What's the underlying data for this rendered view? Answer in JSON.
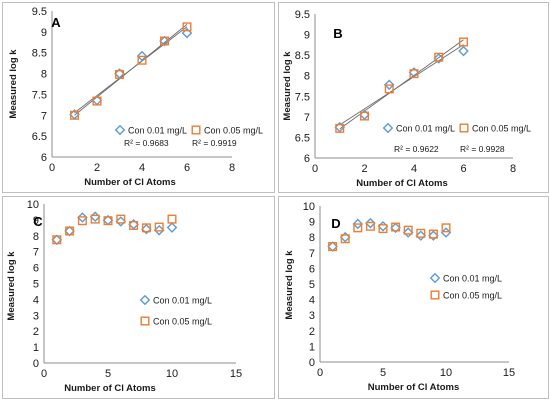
{
  "colors": {
    "series1": "#5b9bd5",
    "series2": "#ed7d31",
    "trendline": "#6b6b6b"
  },
  "chart_data": [
    {
      "panel": "A",
      "type": "scatter",
      "xlabel": "Number of Cl Atoms",
      "ylabel": "Measured log k",
      "xlim": [
        0,
        8
      ],
      "ylim": [
        6,
        9.5
      ],
      "xticks": [
        "0",
        "2",
        "4",
        "6",
        "8"
      ],
      "yticks": [
        "6",
        "6.5",
        "7",
        "7.5",
        "8",
        "8.5",
        "9",
        "9.5"
      ],
      "series": [
        {
          "name": "Con 0.01 mg/L",
          "marker": "diamond",
          "x": [
            1,
            2,
            3,
            4,
            5,
            6
          ],
          "y": [
            7.02,
            7.36,
            8.0,
            8.42,
            8.78,
            8.97
          ],
          "r2_label": "R² = 0.9683"
        },
        {
          "name": "Con 0.05 mg/L",
          "marker": "square",
          "x": [
            1,
            2,
            3,
            4,
            5,
            6
          ],
          "y": [
            7.0,
            7.34,
            7.98,
            8.32,
            8.78,
            9.12
          ],
          "r2_label": "R² = 0.9919"
        }
      ],
      "trendlines": true,
      "grid": false,
      "legend_position": "lower-right"
    },
    {
      "panel": "B",
      "type": "scatter",
      "xlabel": "Number of Cl Atoms",
      "ylabel": "Measured log k",
      "xlim": [
        0,
        8
      ],
      "ylim": [
        6,
        9.5
      ],
      "xticks": [
        "0",
        "2",
        "4",
        "6",
        "8"
      ],
      "yticks": [
        "6",
        "6.5",
        "7",
        "7.5",
        "8",
        "8.5",
        "9",
        "9.5"
      ],
      "series": [
        {
          "name": "Con 0.01 mg/L",
          "marker": "diamond",
          "x": [
            1,
            2,
            3,
            4,
            5,
            6
          ],
          "y": [
            6.75,
            7.05,
            7.78,
            8.08,
            8.42,
            8.6
          ],
          "r2_label": "R² = 0.9622"
        },
        {
          "name": "Con 0.05 mg/L",
          "marker": "square",
          "x": [
            1,
            2,
            3,
            4,
            5,
            6
          ],
          "y": [
            6.72,
            7.02,
            7.68,
            8.05,
            8.45,
            8.82
          ],
          "r2_label": "R² = 0.9928"
        }
      ],
      "trendlines": true,
      "grid": false,
      "legend_position": "lower-right"
    },
    {
      "panel": "C",
      "type": "scatter",
      "xlabel": "Number of Cl Atoms",
      "ylabel": "Measured log k",
      "xlim": [
        0,
        15
      ],
      "ylim": [
        0,
        10
      ],
      "xticks": [
        "0",
        "5",
        "10",
        "15"
      ],
      "yticks": [
        "0",
        "1",
        "2",
        "3",
        "4",
        "5",
        "6",
        "7",
        "8",
        "9",
        "10"
      ],
      "series": [
        {
          "name": "Con 0.01 mg/L",
          "marker": "diamond",
          "x": [
            1,
            2,
            3,
            4,
            5,
            6,
            7,
            8,
            9,
            10
          ],
          "y": [
            7.75,
            8.3,
            9.15,
            9.2,
            8.98,
            8.9,
            8.72,
            8.42,
            8.35,
            8.52
          ]
        },
        {
          "name": "Con 0.05 mg/L",
          "marker": "square",
          "x": [
            1,
            2,
            3,
            4,
            5,
            6,
            7,
            8,
            9,
            10
          ],
          "y": [
            7.75,
            8.3,
            8.95,
            9.05,
            8.95,
            9.05,
            8.65,
            8.5,
            8.55,
            9.05
          ]
        }
      ],
      "trendlines": false,
      "grid": false,
      "legend_position": "lower-right"
    },
    {
      "panel": "D",
      "type": "scatter",
      "xlabel": "Number of Cl Atoms",
      "ylabel": "Measured log k",
      "xlim": [
        0,
        15
      ],
      "ylim": [
        0,
        10
      ],
      "xticks": [
        "0",
        "5",
        "10",
        "15"
      ],
      "yticks": [
        "0",
        "1",
        "2",
        "3",
        "4",
        "5",
        "6",
        "7",
        "8",
        "9",
        "10"
      ],
      "series": [
        {
          "name": "Con 0.01 mg/L",
          "marker": "diamond",
          "x": [
            1,
            2,
            3,
            4,
            5,
            6,
            7,
            8,
            9,
            10
          ],
          "y": [
            7.4,
            8.0,
            8.85,
            8.9,
            8.7,
            8.6,
            8.3,
            8.1,
            8.1,
            8.3
          ]
        },
        {
          "name": "Con 0.05 mg/L",
          "marker": "square",
          "x": [
            1,
            2,
            3,
            4,
            5,
            6,
            7,
            8,
            9,
            10
          ],
          "y": [
            7.4,
            7.9,
            8.6,
            8.7,
            8.55,
            8.65,
            8.45,
            8.25,
            8.2,
            8.6
          ]
        }
      ],
      "trendlines": false,
      "grid": false,
      "legend_position": "lower-right"
    }
  ]
}
